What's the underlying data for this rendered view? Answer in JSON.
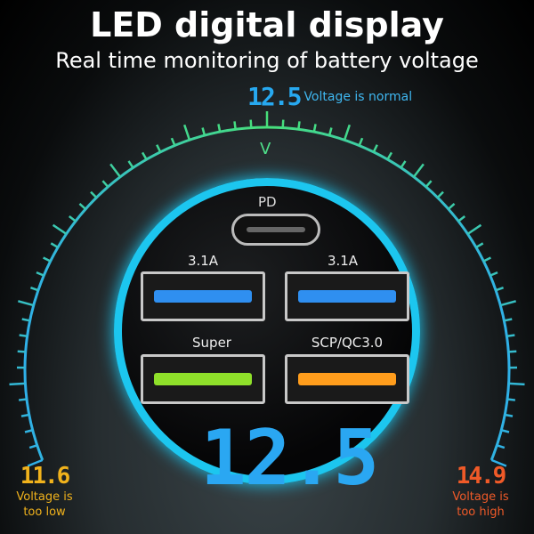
{
  "header": {
    "title": "LED digital display",
    "subtitle": "Real time monitoring of battery voltage"
  },
  "top_reading": {
    "value": "12.5",
    "label": "Voltage is normal",
    "color": "#27a9f0"
  },
  "gauge": {
    "marker": "V",
    "gradient": [
      "#2fb0e8",
      "#47e07a",
      "#2fb0e8"
    ]
  },
  "ports": {
    "pd": {
      "label": "PD",
      "type": "usb-c-port"
    },
    "usb": [
      {
        "label": "3.1A",
        "color": "#2f8ff0"
      },
      {
        "label": "3.1A",
        "color": "#2f8ff0"
      },
      {
        "label": "Super",
        "color": "#8fe02a"
      },
      {
        "label": "SCP/QC3.0",
        "color": "#ff9d1c"
      }
    ]
  },
  "display": {
    "value": "12.5",
    "color": "#2aa7f2",
    "ring_color": "#1cc6ef"
  },
  "low": {
    "value": "11.6",
    "line1": "Voltage is",
    "line2": "too low",
    "color": "#f0b21c"
  },
  "high": {
    "value": "14.9",
    "line1": "Voltage is",
    "line2": "too high",
    "color": "#f05a28"
  }
}
